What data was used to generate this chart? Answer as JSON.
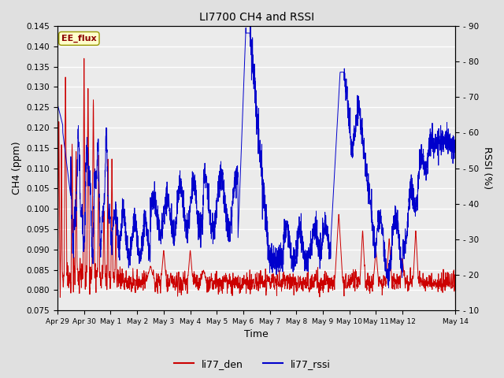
{
  "title": "LI7700 CH4 and RSSI",
  "xlabel": "Time",
  "ylabel_left": "CH4 (ppm)",
  "ylabel_right": "RSSI (%)",
  "ylim_left": [
    0.075,
    0.145
  ],
  "ylim_right": [
    10,
    90
  ],
  "yticks_left": [
    0.075,
    0.08,
    0.085,
    0.09,
    0.095,
    0.1,
    0.105,
    0.11,
    0.115,
    0.12,
    0.125,
    0.13,
    0.135,
    0.14,
    0.145
  ],
  "yticks_right": [
    10,
    20,
    30,
    40,
    50,
    60,
    70,
    80,
    90
  ],
  "annotation_text": "EE_flux",
  "annotation_color": "#8B0000",
  "annotation_bg": "#FFFFCC",
  "line_color_red": "#CC0000",
  "line_color_blue": "#0000CC",
  "legend_label_red": "li77_den",
  "legend_label_blue": "li77_rssi",
  "bg_color": "#E0E0E0",
  "plot_bg_color": "#EBEBEB",
  "n_points": 3000,
  "x_start_days": 0,
  "x_end_days": 15.0,
  "x_ticks_days": [
    0,
    1,
    2,
    3,
    4,
    5,
    6,
    7,
    8,
    9,
    10,
    11,
    12,
    13,
    15
  ],
  "x_tick_labels": [
    "Apr 29",
    "Apr 30",
    "May 1",
    "May 2",
    "May 3",
    "May 4",
    "May 5",
    "May 6",
    "May 7",
    "May 8",
    "May 9",
    "May 10",
    "May 11",
    "May 12",
    "May 14"
  ]
}
